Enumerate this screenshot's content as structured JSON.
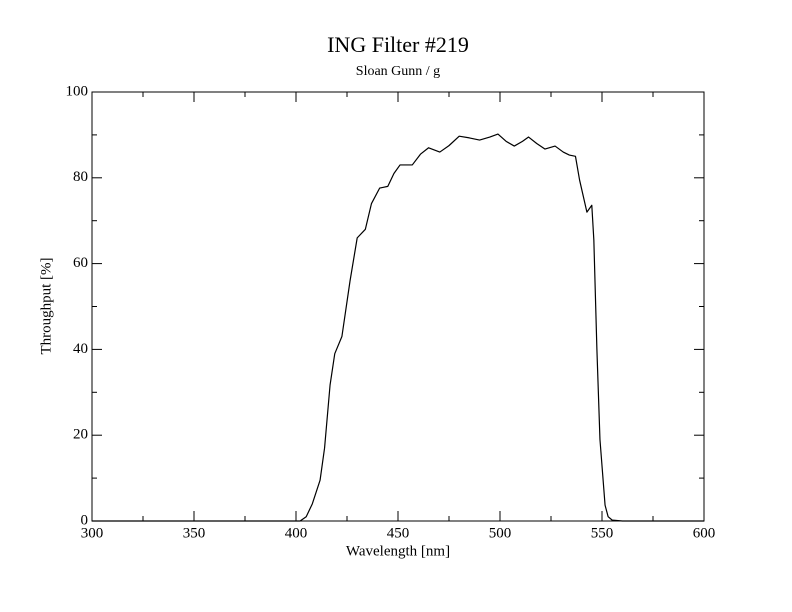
{
  "chart_data": {
    "type": "line",
    "title": "ING Filter #219",
    "subtitle": "Sloan Gunn / g",
    "x_label": "Wavelength [nm]",
    "y_label": "Throughput [%]",
    "series": [
      {
        "name": "Sloan Gunn / g",
        "color": "#000000",
        "x": [
          300,
          350,
          400,
          402,
          405,
          408,
          411.8,
          414,
          416.7,
          419,
          422.5,
          426.5,
          430,
          434,
          437,
          441,
          445,
          448,
          451,
          454,
          457,
          461,
          465,
          470.5,
          475,
          480,
          485,
          490,
          495,
          499,
          503,
          507,
          511,
          514,
          518,
          522,
          527,
          531,
          534,
          537,
          539,
          542.6,
          545,
          546,
          547.5,
          549,
          551.5,
          553,
          555,
          560,
          600
        ],
        "values": [
          0,
          0,
          0,
          0,
          1,
          4,
          9.5,
          17,
          31.7,
          39,
          43,
          56,
          66,
          68,
          74,
          77.6,
          78,
          81,
          83,
          83,
          83,
          85.5,
          87,
          86,
          87.5,
          89.7,
          89.3,
          88.8,
          89.5,
          90.2,
          88.5,
          87.4,
          88.5,
          89.5,
          88,
          86.7,
          87.4,
          86,
          85.3,
          85,
          79.5,
          72,
          73.6,
          65.5,
          40,
          19,
          3.7,
          1,
          0.2,
          0,
          0
        ]
      }
    ],
    "xlim": [
      300,
      600
    ],
    "xticks": [
      300,
      350,
      400,
      450,
      500,
      550,
      600
    ],
    "ylim": [
      0,
      100
    ],
    "yticks": [
      0,
      20,
      40,
      60,
      80,
      100
    ]
  }
}
